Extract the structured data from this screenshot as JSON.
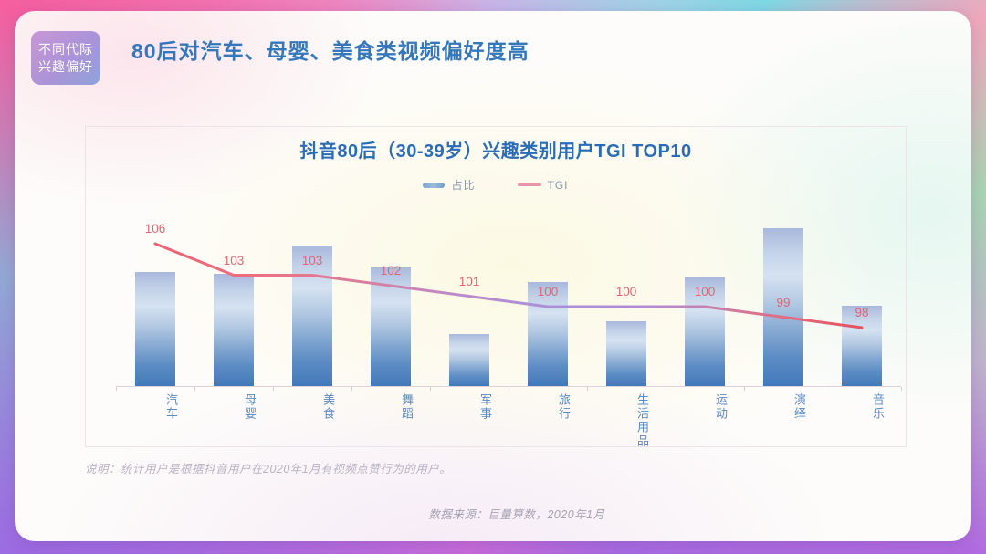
{
  "page": {
    "badge": {
      "line1": "不同代际",
      "line2": "兴趣偏好"
    },
    "title": "80后对汽车、母婴、美食类视频偏好度高"
  },
  "chart_panel": {
    "title": "抖音80后（30-39岁）兴趣类别用户TGI TOP10",
    "legend": {
      "bar_label": "占比",
      "line_label": "TGI"
    },
    "footnote": "说明：统计用户是根据抖音用户在2020年1月有视频点赞行为的用户。",
    "source": "数据来源：巨量算数，2020年1月"
  },
  "chart_data": {
    "type": "bar",
    "title": "抖音80后（30-39岁）兴趣类别用户TGI TOP10",
    "categories": [
      "汽车",
      "母婴",
      "美食",
      "舞蹈",
      "军事",
      "旅行",
      "生活用品",
      "运动",
      "演绎",
      "音乐"
    ],
    "series": [
      {
        "name": "占比",
        "type": "bar",
        "axis_labeled": false,
        "values_relative_pct_of_max": [
          72,
          71,
          89,
          76,
          33,
          66,
          41,
          69,
          100,
          51
        ]
      },
      {
        "name": "TGI",
        "type": "line",
        "values": [
          106,
          103,
          103,
          102,
          101,
          100,
          100,
          100,
          99,
          98
        ]
      }
    ],
    "legend_position": "top",
    "grid": false,
    "xlabel": "",
    "ylabel": "",
    "colors": {
      "bar_top": "#a9b8dc",
      "bar_bottom": "#4379b9",
      "line_pink": "#ee6174",
      "line_purple": "#ab91da",
      "tgi_label_color": "#df6672",
      "title_color": "#2a6db6"
    }
  }
}
